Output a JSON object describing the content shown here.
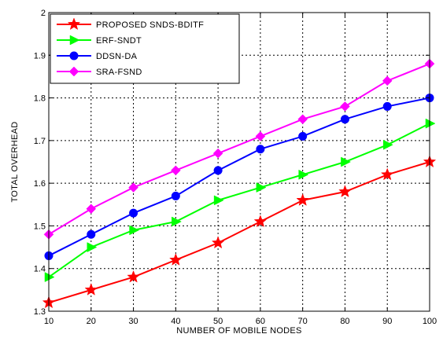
{
  "chart_data": {
    "type": "line",
    "xlabel": "NUMBER OF MOBILE NODES",
    "ylabel": "TOTAL OVERHEAD",
    "x": [
      10,
      20,
      30,
      40,
      50,
      60,
      70,
      80,
      90,
      100
    ],
    "xlim": [
      10,
      100
    ],
    "ylim": [
      1.3,
      2.0
    ],
    "xticks": [
      "10",
      "20",
      "30",
      "40",
      "50",
      "60",
      "70",
      "80",
      "90",
      "100"
    ],
    "yticks": [
      "1.3",
      "1.4",
      "1.5",
      "1.6",
      "1.7",
      "1.8",
      "1.9",
      "2"
    ],
    "grid": true,
    "legend_position": "top-left",
    "series": [
      {
        "name": "PROPOSED SNDS-BDITF",
        "color": "#ff0000",
        "marker": "star",
        "values": [
          1.32,
          1.35,
          1.38,
          1.42,
          1.46,
          1.51,
          1.56,
          1.58,
          1.62,
          1.65
        ]
      },
      {
        "name": "ERF-SNDT",
        "color": "#00ff00",
        "marker": "triangle-right",
        "values": [
          1.38,
          1.45,
          1.49,
          1.51,
          1.56,
          1.59,
          1.62,
          1.65,
          1.69,
          1.74
        ]
      },
      {
        "name": "DDSN-DA",
        "color": "#0000ff",
        "marker": "circle",
        "values": [
          1.43,
          1.48,
          1.53,
          1.57,
          1.63,
          1.68,
          1.71,
          1.75,
          1.78,
          1.8
        ]
      },
      {
        "name": "SRA-FSND",
        "color": "#ff00ff",
        "marker": "diamond",
        "values": [
          1.48,
          1.54,
          1.59,
          1.63,
          1.67,
          1.71,
          1.75,
          1.78,
          1.84,
          1.88
        ]
      }
    ]
  }
}
